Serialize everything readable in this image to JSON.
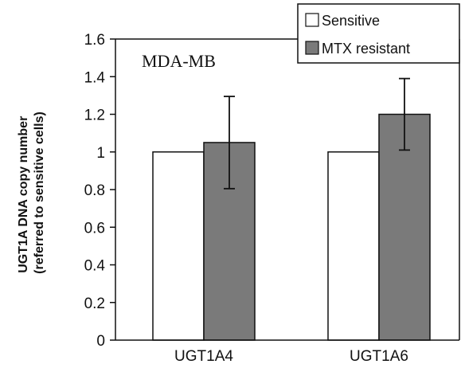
{
  "chart_data": {
    "type": "bar",
    "categories": [
      "UGT1A4",
      "UGT1A6"
    ],
    "series": [
      {
        "name": "Sensitive",
        "values": [
          1.0,
          1.0
        ],
        "color": "#ffffff"
      },
      {
        "name": "MTX resistant",
        "values": [
          1.05,
          1.2
        ],
        "errors": [
          0.245,
          0.19
        ],
        "color": "#7a7a7a"
      }
    ],
    "ylabel_line1": "UGT1A DNA copy number",
    "ylabel_line2": "(referred to sensitive cells)",
    "annotation": "MDA-MB",
    "ylim": [
      0,
      1.6
    ],
    "yticks": [
      "0",
      "0.2",
      "0.4",
      "0.6",
      "0.8",
      "1",
      "1.2",
      "1.4",
      "1.6"
    ],
    "grid": false,
    "legend_position": "top-right"
  }
}
